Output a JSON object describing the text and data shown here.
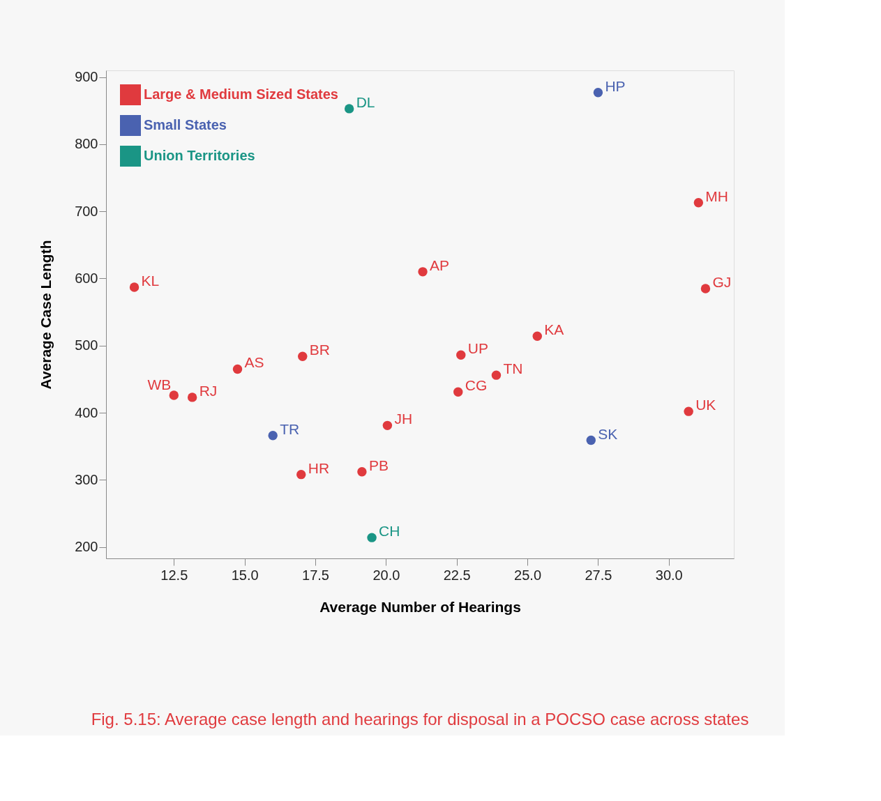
{
  "chart_data": {
    "type": "scatter",
    "xlabel": "Average Number of Hearings",
    "ylabel": "Average Case Length",
    "xlim": [
      10.1,
      32.3
    ],
    "ylim": [
      183,
      910
    ],
    "xticks": [
      12.5,
      {
        "value": 15,
        "label": "15.0"
      },
      17.5,
      {
        "value": 20,
        "label": "20.0"
      },
      22.5,
      {
        "value": 25,
        "label": "25.0"
      },
      27.5,
      {
        "value": 30,
        "label": "30.0"
      }
    ],
    "yticks": [
      200,
      300,
      400,
      500,
      600,
      700,
      800,
      900
    ],
    "grid": false,
    "legend": "top left",
    "marker": "circle",
    "series": [
      {
        "name": "Large & Medium Sized States",
        "color": "#e03a3e",
        "x": [
          11.1,
          12.5,
          13.15,
          14.75,
          17.05,
          17.0,
          19.15,
          20.05,
          21.3,
          22.65,
          22.55,
          23.9,
          25.35,
          31.05,
          31.3,
          30.7
        ],
        "values": [
          587,
          426,
          423,
          465,
          484,
          308,
          312,
          381,
          610,
          486,
          431,
          456,
          514,
          713,
          585,
          402
        ],
        "value_labels": [
          "KL",
          "WB",
          "RJ",
          "AS",
          "BR",
          "HR",
          "PB",
          "JH",
          "AP",
          "UP",
          "CG",
          "TN",
          "KA",
          "MH",
          "GJ",
          "UK"
        ]
      },
      {
        "name": "Small States",
        "color": "#4a62b0",
        "x": [
          16.0,
          27.25,
          27.5
        ],
        "values": [
          366,
          359,
          877
        ],
        "value_labels": [
          "TR",
          "SK",
          "HP"
        ]
      },
      {
        "name": "Union Territories",
        "color": "#1a9585",
        "x": [
          18.7,
          19.5
        ],
        "values": [
          853,
          214
        ],
        "value_labels": [
          "DL",
          "CH"
        ]
      }
    ],
    "annotations": [
      "Fig. 5.15: Average case length and hearings for disposal in a POCSO case across states"
    ]
  }
}
